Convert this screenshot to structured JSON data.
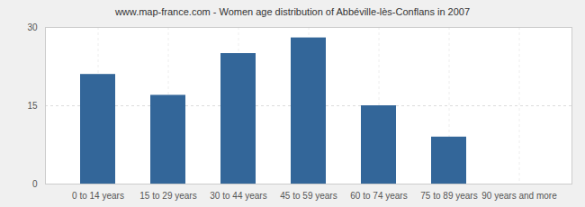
{
  "chart_data": {
    "type": "bar",
    "title": "www.map-france.com - Women age distribution of Abbéville-lès-Conflans in 2007",
    "categories": [
      "0 to 14 years",
      "15 to 29 years",
      "30 to 44 years",
      "45 to 59 years",
      "60 to 74 years",
      "75 to 89 years",
      "90 years and more"
    ],
    "values": [
      21,
      17,
      25,
      28,
      15,
      9,
      0
    ],
    "color": "#336699",
    "ylim": [
      0,
      30
    ],
    "yticks": [
      0,
      15,
      30
    ],
    "grid": true
  }
}
